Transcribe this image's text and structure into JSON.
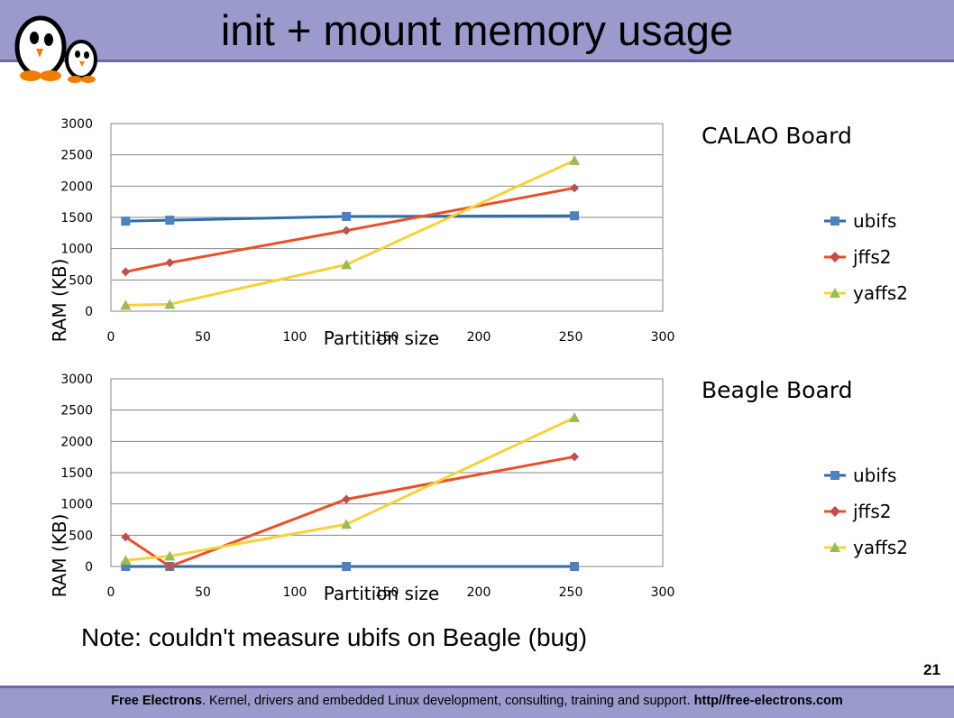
{
  "slide": {
    "title": "init + mount memory usage",
    "note": "Note: couldn't measure ubifs on Beagle (bug)",
    "page_number": "21",
    "footer": {
      "org": "Free Electrons",
      "text": ". Kernel, drivers and embedded Linux development, consulting, training and support. ",
      "url": "http//free-electrons.com"
    }
  },
  "colors": {
    "ubifs": "#2e6da8",
    "jffs2": "#e8502a",
    "yaffs2": "#f5d23a",
    "ubifs_marker": "#4f81bd",
    "jffs2_marker": "#c0504d",
    "yaffs2_marker": "#9bbb59"
  },
  "chart_data": [
    {
      "type": "line",
      "board_title": "CALAO Board",
      "xlabel": "Partition size",
      "ylabel": "RAM (KB)",
      "xlim": [
        0,
        300
      ],
      "ylim": [
        0,
        3000
      ],
      "xticks": [
        "0",
        "50",
        "100",
        "150",
        "200",
        "250",
        "300"
      ],
      "yticks": [
        "0",
        "500",
        "1000",
        "1500",
        "2000",
        "2500",
        "3000"
      ],
      "grid": true,
      "legend_position": "right",
      "series": [
        {
          "name": "ubifs",
          "x": [
            8,
            32,
            128,
            252
          ],
          "y": [
            1440,
            1455,
            1515,
            1525
          ]
        },
        {
          "name": "jffs2",
          "x": [
            8,
            32,
            128,
            252
          ],
          "y": [
            630,
            775,
            1290,
            1970
          ]
        },
        {
          "name": "yaffs2",
          "x": [
            8,
            32,
            128,
            252
          ],
          "y": [
            95,
            110,
            745,
            2410
          ]
        }
      ]
    },
    {
      "type": "line",
      "board_title": "Beagle Board",
      "xlabel": "Partition size",
      "ylabel": "RAM (KB)",
      "xlim": [
        0,
        300
      ],
      "ylim": [
        0,
        3000
      ],
      "xticks": [
        "0",
        "50",
        "100",
        "150",
        "200",
        "250",
        "300"
      ],
      "yticks": [
        "0",
        "500",
        "1000",
        "1500",
        "2000",
        "2500",
        "3000"
      ],
      "grid": true,
      "legend_position": "right",
      "series": [
        {
          "name": "ubifs",
          "x": [
            8,
            32,
            128,
            252
          ],
          "y": [
            0,
            0,
            0,
            0
          ]
        },
        {
          "name": "jffs2",
          "x": [
            8,
            32,
            128,
            252
          ],
          "y": [
            470,
            0,
            1075,
            1755
          ]
        },
        {
          "name": "yaffs2",
          "x": [
            8,
            32,
            128,
            252
          ],
          "y": [
            100,
            165,
            675,
            2380
          ]
        }
      ]
    }
  ]
}
